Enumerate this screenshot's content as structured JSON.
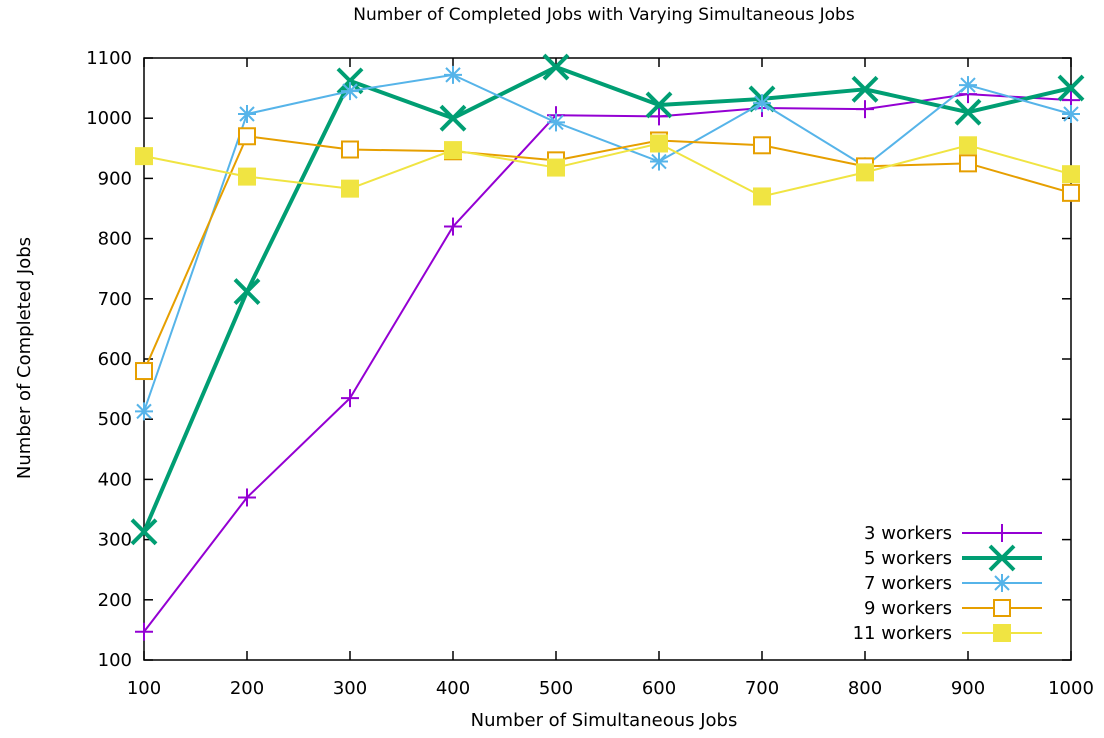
{
  "chart_data": {
    "type": "line",
    "title": "Number of Completed Jobs with Varying Simultaneous Jobs",
    "xlabel": "Number of Simultaneous Jobs",
    "ylabel": "Number of Completed Jobs",
    "xlim": [
      100,
      1000
    ],
    "ylim": [
      100,
      1100
    ],
    "xticks": [
      100,
      200,
      300,
      400,
      500,
      600,
      700,
      800,
      900,
      1000
    ],
    "yticks": [
      100,
      200,
      300,
      400,
      500,
      600,
      700,
      800,
      900,
      1000,
      1100
    ],
    "grid": false,
    "legend_position": "bottom-right",
    "x": [
      100,
      200,
      300,
      400,
      500,
      600,
      700,
      800,
      900,
      1000
    ],
    "series": [
      {
        "name": "3 workers",
        "color": "#9400d3",
        "marker": "plus",
        "line_width": 2,
        "values": [
          147,
          370,
          535,
          820,
          1005,
          1003,
          1017,
          1015,
          1040,
          1030
        ]
      },
      {
        "name": "5 workers",
        "color": "#009e73",
        "marker": "cross",
        "line_width": 4,
        "values": [
          313,
          712,
          1062,
          1000,
          1085,
          1022,
          1032,
          1048,
          1010,
          1050
        ]
      },
      {
        "name": "7 workers",
        "color": "#56b4e9",
        "marker": "star",
        "line_width": 2,
        "values": [
          513,
          1007,
          1045,
          1072,
          993,
          928,
          1025,
          920,
          1055,
          1007
        ]
      },
      {
        "name": "9 workers",
        "color": "#e69f00",
        "marker": "square-open",
        "line_width": 2,
        "values": [
          580,
          970,
          948,
          945,
          930,
          963,
          955,
          920,
          925,
          876
        ]
      },
      {
        "name": "11 workers",
        "color": "#f0e442",
        "marker": "square-filled",
        "line_width": 2,
        "values": [
          937,
          903,
          883,
          947,
          918,
          958,
          870,
          910,
          955,
          907
        ]
      }
    ]
  }
}
